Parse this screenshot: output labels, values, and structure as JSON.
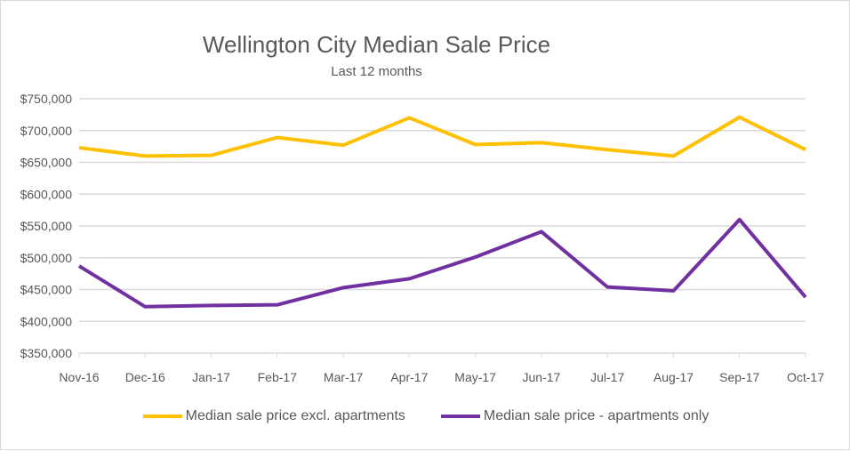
{
  "chart_data": {
    "type": "line",
    "title": "Wellington City Median Sale Price",
    "subtitle": "Last 12 months",
    "xlabel": "",
    "ylabel": "",
    "categories": [
      "Nov-16",
      "Dec-16",
      "Jan-17",
      "Feb-17",
      "Mar-17",
      "Apr-17",
      "May-17",
      "Jun-17",
      "Jul-17",
      "Aug-17",
      "Sep-17",
      "Oct-17"
    ],
    "ylim": [
      350000,
      750000
    ],
    "yticks": [
      "$350,000",
      "$400,000",
      "$450,000",
      "$500,000",
      "$550,000",
      "$600,000",
      "$650,000",
      "$700,000",
      "$750,000"
    ],
    "grid": true,
    "legend_position": "bottom",
    "series": [
      {
        "name": "Median sale price excl. apartments",
        "color": "#FFC000",
        "values": [
          673000,
          660000,
          661000,
          689000,
          677000,
          720000,
          678000,
          681000,
          670000,
          660000,
          721000,
          670000
        ]
      },
      {
        "name": "Median sale price - apartments only",
        "color": "#7030A0",
        "values": [
          487000,
          423000,
          425000,
          426000,
          453000,
          467000,
          501000,
          541000,
          454000,
          448000,
          560000,
          438000
        ]
      }
    ]
  }
}
